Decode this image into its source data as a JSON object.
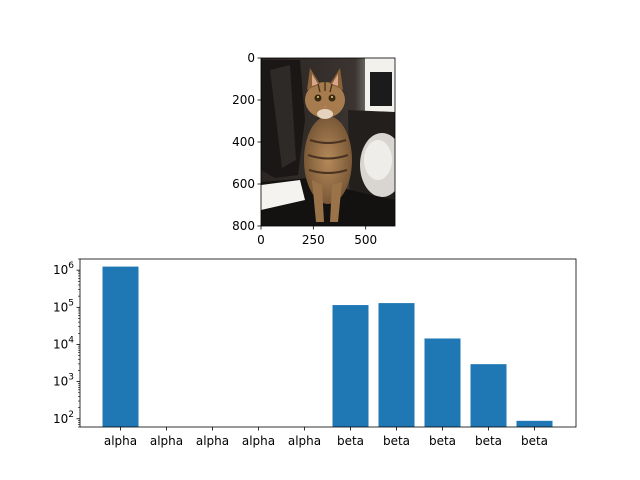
{
  "chart_data": [
    {
      "type": "image",
      "image_description": "photo of a tabby cat sitting on a dark floor",
      "image_size": [
        640,
        800
      ],
      "x_ticks": [
        0,
        250,
        500
      ],
      "y_ticks": [
        0,
        200,
        400,
        600,
        800
      ],
      "xlim": [
        0,
        640
      ],
      "ylim": [
        800,
        0
      ],
      "xlabel": "",
      "ylabel": "",
      "title": ""
    },
    {
      "type": "bar",
      "categories": [
        "alpha",
        "alpha",
        "alpha",
        "alpha",
        "alpha",
        "beta",
        "beta",
        "beta",
        "beta",
        "beta"
      ],
      "values": [
        1250000,
        0,
        0,
        0,
        0,
        115000,
        130000,
        14500,
        2950,
        88
      ],
      "yscale": "log",
      "ylim": [
        60,
        2000000
      ],
      "y_ticks": [
        {
          "value": 100,
          "base": "10",
          "exp": "2"
        },
        {
          "value": 1000,
          "base": "10",
          "exp": "3"
        },
        {
          "value": 10000,
          "base": "10",
          "exp": "4"
        },
        {
          "value": 100000,
          "base": "10",
          "exp": "5"
        },
        {
          "value": 1000000,
          "base": "10",
          "exp": "6"
        }
      ],
      "color": "#1f77b4",
      "xlabel": "",
      "ylabel": "",
      "title": ""
    }
  ]
}
